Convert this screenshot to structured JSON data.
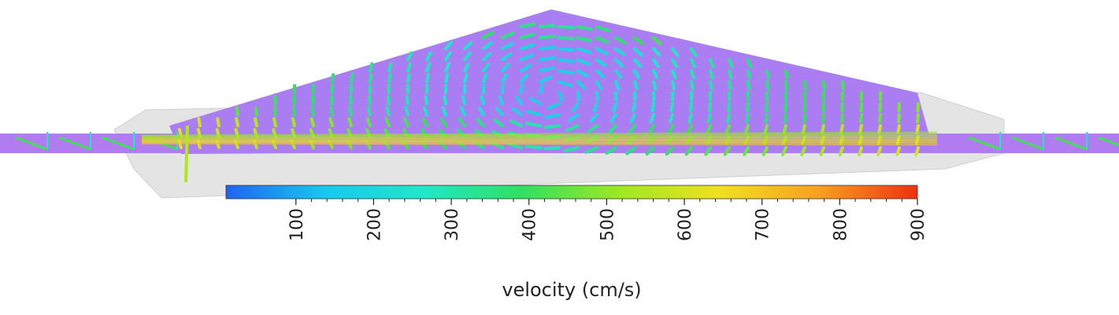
{
  "colorbar": {
    "label": "velocity (cm/s)",
    "lim": [
      10,
      900
    ],
    "ticks": [
      100,
      200,
      300,
      400,
      500,
      600,
      700,
      800,
      900
    ],
    "colors": [
      "#1e64f0",
      "#18c8f0",
      "#20e8c8",
      "#30e060",
      "#a0e820",
      "#f0e020",
      "#f8a020",
      "#f03010"
    ]
  }
}
